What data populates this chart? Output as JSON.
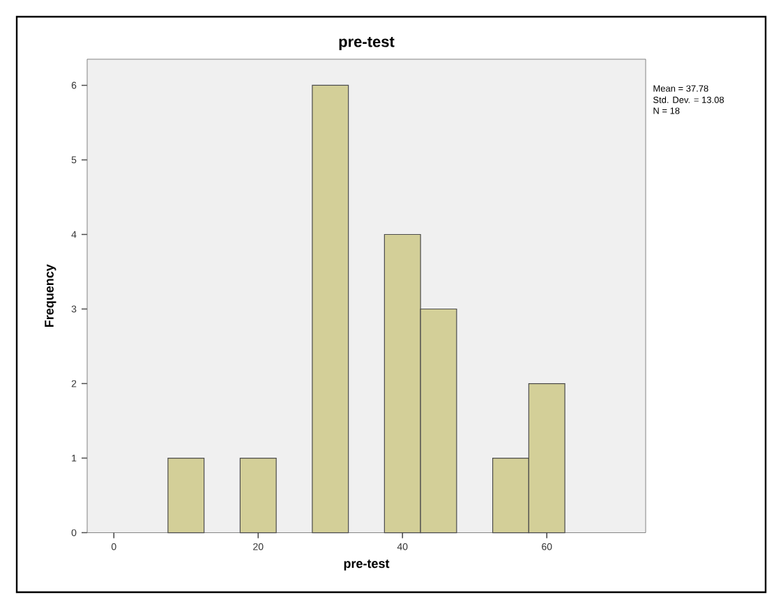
{
  "chart_data": {
    "type": "histogram",
    "title": "pre-test",
    "xlabel": "pre-test",
    "ylabel": "Frequency",
    "bins": [
      7.5,
      12.5,
      17.5,
      22.5,
      27.5,
      32.5,
      37.5,
      42.5,
      47.5,
      52.5,
      57.5,
      62.5
    ],
    "values": [
      1,
      0,
      1,
      0,
      6,
      0,
      4,
      3,
      0,
      1,
      2
    ],
    "color": "#d3cf98",
    "xlim": [
      -3.7,
      73.7
    ],
    "xticks": [
      0,
      20,
      40,
      60
    ],
    "ylim": [
      0,
      6.35
    ],
    "yticks": [
      0,
      1,
      2,
      3,
      4,
      5,
      6
    ],
    "grid": false,
    "annotations": [
      "Mean = 37.78",
      "Std. Dev. = 13.08",
      "N = 18"
    ]
  }
}
